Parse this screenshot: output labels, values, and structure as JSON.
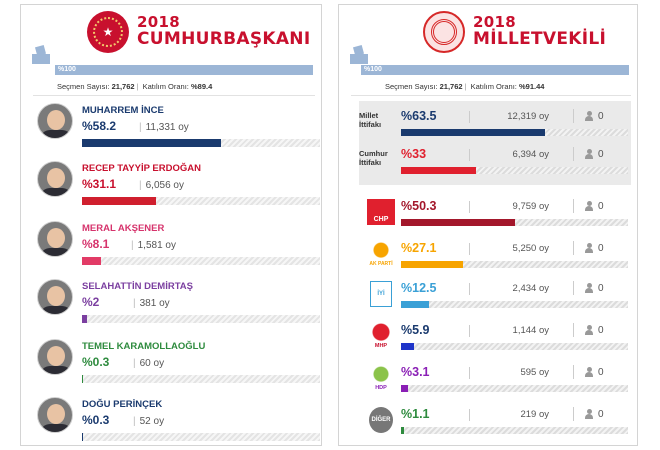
{
  "presidential": {
    "year": "2018",
    "title": "CUMHURBAŞKANI",
    "bar_label": "%100",
    "stats": {
      "voters_label": "Seçmen Sayısı:",
      "voters": "21,762",
      "turnout_label": "Katılım Oranı:",
      "turnout": "%89.4"
    },
    "candidates": [
      {
        "name": "MUHARREM İNCE",
        "pct": "%58.2",
        "votes": "11,331 oy",
        "share": 58.2,
        "color": "#1a3a6e",
        "name_color": "#1a3a6e"
      },
      {
        "name": "RECEP TAYYİP ERDOĞAN",
        "pct": "%31.1",
        "votes": "6,056 oy",
        "share": 31.1,
        "color": "#d01f2e",
        "name_color": "#c8102e"
      },
      {
        "name": "MERAL AKŞENER",
        "pct": "%8.1",
        "votes": "1,581 oy",
        "share": 8.1,
        "color": "#e23b66",
        "name_color": "#d6336c"
      },
      {
        "name": "SELAHATTİN DEMİRTAŞ",
        "pct": "%2",
        "votes": "381 oy",
        "share": 2,
        "color": "#7b3fa0",
        "name_color": "#7b3fa0"
      },
      {
        "name": "TEMEL KARAMOLLAOĞLU",
        "pct": "%0.3",
        "votes": "60 oy",
        "share": 0.3,
        "color": "#2e8b3e",
        "name_color": "#2e8b3e"
      },
      {
        "name": "DOĞU PERİNÇEK",
        "pct": "%0.3",
        "votes": "52 oy",
        "share": 0.3,
        "color": "#1a3a6e",
        "name_color": "#1a3a6e"
      }
    ]
  },
  "parliamentary": {
    "year": "2018",
    "title": "MİLLETVEKİLİ",
    "bar_label": "%100",
    "stats": {
      "voters_label": "Seçmen Sayısı:",
      "voters": "21,762",
      "turnout_label": "Katılım Oranı:",
      "turnout": "%91.44"
    },
    "alliances": [
      {
        "label": "Millet İttifakı",
        "pct": "%63.5",
        "votes": "12,319 oy",
        "seats": "0",
        "share": 63.5,
        "color": "#1a3a6e",
        "pct_color": "#1a3a6e"
      },
      {
        "label": "Cumhur İttifakı",
        "pct": "%33",
        "votes": "6,394 oy",
        "seats": "0",
        "share": 33,
        "color": "#e0202e",
        "pct_color": "#e0202e"
      }
    ],
    "parties": [
      {
        "logo": "chp-logo-icon",
        "logo_text": "CHP",
        "pct": "%50.3",
        "votes": "9,759 oy",
        "seats": "0",
        "share": 50.3,
        "color": "#a3172b",
        "pct_color": "#a3172b"
      },
      {
        "logo": "akparti-logo-icon",
        "logo_text": "AK PARTİ",
        "pct": "%27.1",
        "votes": "5,250 oy",
        "seats": "0",
        "share": 27.1,
        "color": "#f7a400",
        "pct_color": "#f7a400"
      },
      {
        "logo": "iyi-logo-icon",
        "logo_text": "İYİ",
        "pct": "%12.5",
        "votes": "2,434 oy",
        "seats": "0",
        "share": 12.5,
        "color": "#3aa0d6",
        "pct_color": "#3aa0d6"
      },
      {
        "logo": "mhp-logo-icon",
        "logo_text": "MHP",
        "pct": "%5.9",
        "votes": "1,144 oy",
        "seats": "0",
        "share": 5.9,
        "color": "#1e34c9",
        "pct_color": "#1a3a6e"
      },
      {
        "logo": "hdp-logo-icon",
        "logo_text": "HDP",
        "pct": "%3.1",
        "votes": "595 oy",
        "seats": "0",
        "share": 3.1,
        "color": "#8a1fb5",
        "pct_color": "#8a1fb5"
      },
      {
        "logo": "diger-logo-icon",
        "logo_text": "DİĞER",
        "pct": "%1.1",
        "votes": "219 oy",
        "seats": "0",
        "share": 1.1,
        "color": "#2e8b3e",
        "pct_color": "#2e8b3e"
      }
    ]
  }
}
